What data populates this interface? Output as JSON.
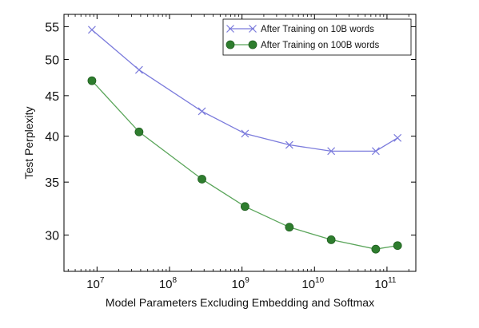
{
  "chart_data": {
    "type": "line",
    "xlabel": "Model Parameters Excluding Embedding and Softmax",
    "ylabel": "Test Perplexity",
    "xscale": "log",
    "yscale": "log",
    "xlim": [
      3500000,
      250000000000
    ],
    "ylim": [
      27,
      57
    ],
    "xticks": [
      {
        "value": 10000000,
        "base": "10",
        "exp": "7"
      },
      {
        "value": 100000000,
        "base": "10",
        "exp": "8"
      },
      {
        "value": 1000000000,
        "base": "10",
        "exp": "9"
      },
      {
        "value": 10000000000,
        "base": "10",
        "exp": "10"
      },
      {
        "value": 100000000000,
        "base": "10",
        "exp": "11"
      }
    ],
    "yticks": [
      {
        "value": 30,
        "label": "30"
      },
      {
        "value": 35,
        "label": "35"
      },
      {
        "value": 40,
        "label": "40"
      },
      {
        "value": 45,
        "label": "45"
      },
      {
        "value": 50,
        "label": "50"
      },
      {
        "value": 55,
        "label": "55"
      }
    ],
    "grid": false,
    "legend_position": "top-right",
    "series": [
      {
        "name": "After Training on 10B words",
        "color": "#7b7bdc",
        "marker": "x",
        "x": [
          8500000,
          38000000,
          280000000,
          1100000000,
          4500000000,
          17000000000,
          70000000000,
          140000000000
        ],
        "y": [
          54.5,
          48.5,
          43.0,
          40.3,
          39.0,
          38.3,
          38.3,
          39.8
        ]
      },
      {
        "name": "After Training on 100B words",
        "color": "#5aa55a",
        "marker_fill": "#2e7d2e",
        "marker": "circle",
        "x": [
          8500000,
          38000000,
          280000000,
          1100000000,
          4500000000,
          17000000000,
          70000000000,
          140000000000
        ],
        "y": [
          47.0,
          40.5,
          35.3,
          32.6,
          30.7,
          29.6,
          28.8,
          29.1
        ]
      }
    ]
  }
}
